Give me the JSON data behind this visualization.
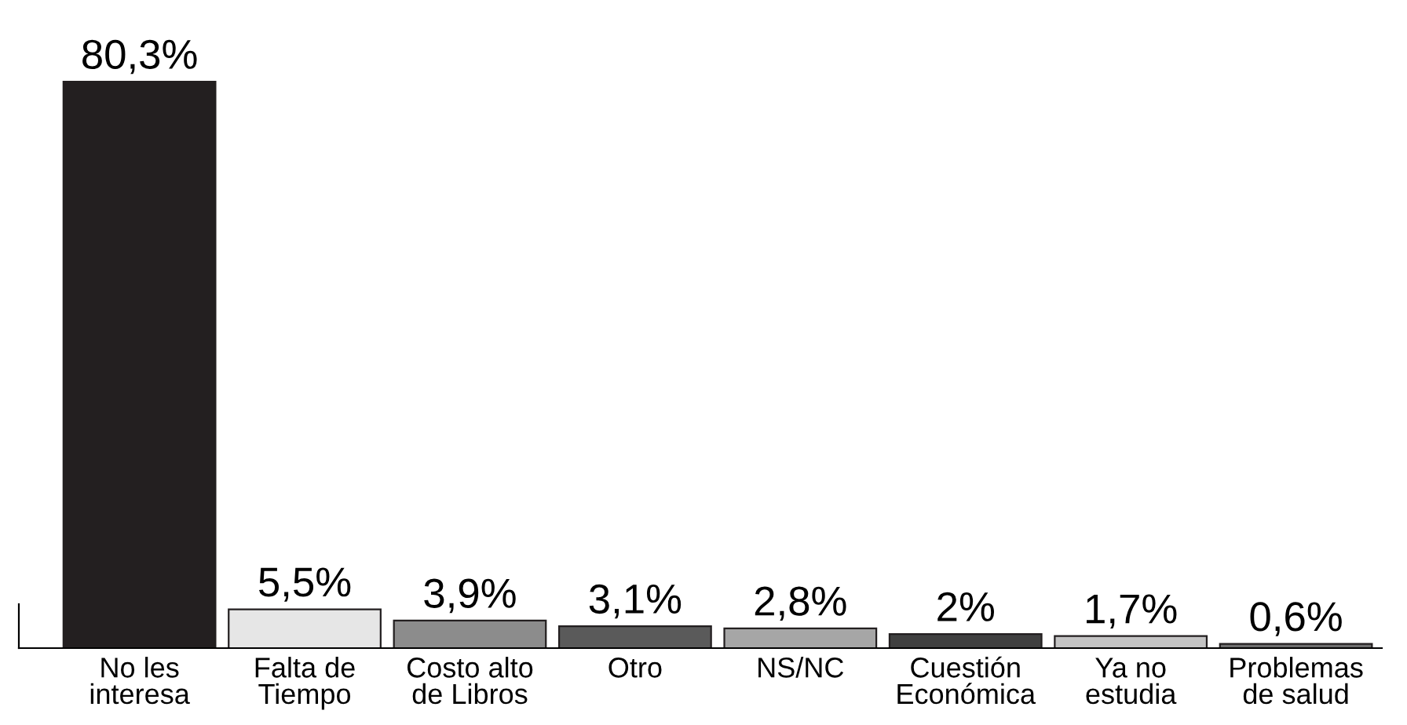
{
  "chart_data": {
    "type": "bar",
    "categories": [
      "No les\ninteresa",
      "Falta de\nTiempo",
      "Costo alto\nde Libros",
      "Otro",
      "NS/NC",
      "Cuestión\nEconómica",
      "Ya no\nestudia",
      "Problemas\nde salud"
    ],
    "values": [
      80.3,
      5.5,
      3.9,
      3.1,
      2.8,
      2,
      1.7,
      0.6
    ],
    "colors": [
      "#231f20",
      "#e6e6e6",
      "#8c8c8c",
      "#5a5a5a",
      "#a6a6a6",
      "#404040",
      "#c4c4c4",
      "#6e6e6e"
    ],
    "value_labels": [
      "80,3%",
      "5,5%",
      "3,9%",
      "3,1%",
      "2,8%",
      "2%",
      "1,7%",
      "0,6%"
    ],
    "grid": false,
    "legend": false
  }
}
